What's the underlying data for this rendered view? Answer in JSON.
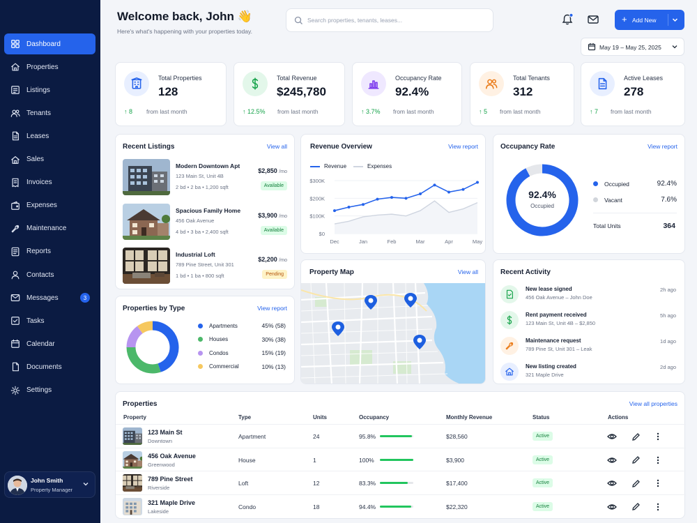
{
  "sidebar": {
    "items": [
      {
        "label": "Dashboard",
        "icon": "dashboard-icon"
      },
      {
        "label": "Properties",
        "icon": "home-icon"
      },
      {
        "label": "Listings",
        "icon": "listings-icon"
      },
      {
        "label": "Tenants",
        "icon": "users-icon"
      },
      {
        "label": "Leases",
        "icon": "document-icon"
      },
      {
        "label": "Sales",
        "icon": "house-icon"
      },
      {
        "label": "Invoices",
        "icon": "invoice-icon"
      },
      {
        "label": "Expenses",
        "icon": "wallet-icon"
      },
      {
        "label": "Maintenance",
        "icon": "wrench-icon"
      },
      {
        "label": "Reports",
        "icon": "report-icon"
      },
      {
        "label": "Contacts",
        "icon": "contact-icon"
      },
      {
        "label": "Messages",
        "icon": "mail-icon",
        "badge": "3"
      },
      {
        "label": "Tasks",
        "icon": "checkbox-icon"
      },
      {
        "label": "Calendar",
        "icon": "calendar-icon"
      },
      {
        "label": "Documents",
        "icon": "file-icon"
      },
      {
        "label": "Settings",
        "icon": "gear-icon"
      }
    ],
    "user": {
      "name": "John Smith",
      "role": "Property Manager"
    }
  },
  "header": {
    "welcome": "Welcome back, John 👋",
    "subtitle": "Here's what's happening with your properties today.",
    "search_placeholder": "Search properties, tenants, leases...",
    "add_new": "Add New",
    "date_range": "May 19 – May 25, 2025"
  },
  "stats": [
    {
      "label": "Total Properties",
      "value": "128",
      "change": "8",
      "sub": "from last month",
      "icon": "building-icon",
      "color": "#2563eb",
      "bg": "#e8efff"
    },
    {
      "label": "Total Revenue",
      "value": "$245,780",
      "change": "12.5%",
      "sub": "from last month",
      "icon": "dollar-icon",
      "color": "#16a34a",
      "bg": "#e3f7ea"
    },
    {
      "label": "Occupancy Rate",
      "value": "92.4%",
      "change": "3.7%",
      "sub": "from last month",
      "icon": "chart-icon",
      "color": "#7c3aed",
      "bg": "#efe8ff"
    },
    {
      "label": "Total Tenants",
      "value": "312",
      "change": "5",
      "sub": "from last month",
      "icon": "tenants-icon",
      "color": "#ea7a17",
      "bg": "#fff1e3"
    },
    {
      "label": "Active Leases",
      "value": "278",
      "change": "7",
      "sub": "from last month",
      "icon": "lease-icon",
      "color": "#2563eb",
      "bg": "#e8efff"
    }
  ],
  "recent_listings": {
    "title": "Recent Listings",
    "link": "View all",
    "items": [
      {
        "name": "Modern Downtown Apt",
        "address": "123 Main St, Unit 4B",
        "specs": "2 bd  •  2 ba  •  1,200 sqft",
        "price": "$2,850",
        "period": "/mo",
        "status": "Available"
      },
      {
        "name": "Spacious Family Home",
        "address": "456 Oak Avenue",
        "specs": "4 bd  •  3 ba  •  2,400 sqft",
        "price": "$3,900",
        "period": "/mo",
        "status": "Available"
      },
      {
        "name": "Industrial Loft",
        "address": "789 Pine Street, Unit 301",
        "specs": "1 bd  •  1 ba  •  800 sqft",
        "price": "$2,200",
        "period": "/mo",
        "status": "Pending"
      }
    ]
  },
  "revenue": {
    "title": "Revenue Overview",
    "link": "View report",
    "legend": [
      "Revenue",
      "Expenses"
    ],
    "yticks": [
      "$300K",
      "$200K",
      "$100K",
      "$0"
    ],
    "xticks": [
      "Dec",
      "Jan",
      "Feb",
      "Mar",
      "Apr",
      "May"
    ]
  },
  "chart_data": [
    {
      "type": "line",
      "x": [
        "Dec",
        "",
        "Jan",
        "",
        "Feb",
        "",
        "Mar",
        "",
        "Apr",
        "",
        "May"
      ],
      "series": [
        {
          "name": "Revenue",
          "values": [
            130,
            150,
            165,
            195,
            205,
            200,
            225,
            275,
            235,
            250,
            290
          ],
          "color": "#2563eb"
        },
        {
          "name": "Expenses",
          "values": [
            55,
            70,
            95,
            105,
            110,
            100,
            130,
            185,
            120,
            140,
            175
          ],
          "color": "#cfd5e0"
        }
      ],
      "ylim": [
        0,
        300
      ]
    },
    {
      "type": "pie",
      "labels": [
        "Occupied",
        "Vacant"
      ],
      "values": [
        92.4,
        7.6
      ],
      "colors": [
        "#2563eb",
        "#e5e7eb"
      ]
    },
    {
      "type": "pie",
      "labels": [
        "Apartments",
        "Houses",
        "Condos",
        "Commercial"
      ],
      "values": [
        45,
        30,
        15,
        10
      ],
      "colors": [
        "#2563eb",
        "#4cb86a",
        "#b794f0",
        "#f6c85f"
      ]
    }
  ],
  "occupancy": {
    "title": "Occupancy Rate",
    "link": "View report",
    "center_value": "92.4%",
    "center_label": "Occupied",
    "rows": [
      {
        "label": "Occupied",
        "value": "92.4%",
        "color": "#2563eb"
      },
      {
        "label": "Vacant",
        "value": "7.6%",
        "color": "#d1d5db"
      }
    ],
    "total_label": "Total Units",
    "total_value": "364"
  },
  "by_type": {
    "title": "Properties by Type",
    "link": "View report",
    "rows": [
      {
        "label": "Apartments",
        "value": "45% (58)",
        "color": "#2563eb"
      },
      {
        "label": "Houses",
        "value": "30% (38)",
        "color": "#4cb86a"
      },
      {
        "label": "Condos",
        "value": "15% (19)",
        "color": "#b794f0"
      },
      {
        "label": "Commercial",
        "value": "10% (13)",
        "color": "#f6c85f"
      }
    ]
  },
  "map": {
    "title": "Property Map",
    "link": "View all"
  },
  "activity": {
    "title": "Recent Activity",
    "items": [
      {
        "title": "New lease signed",
        "sub": "456 Oak Avenue – John Doe",
        "time": "2h ago",
        "icon": "lease-signed-icon",
        "color": "#16a34a",
        "bg": "#e3f7ea"
      },
      {
        "title": "Rent payment received",
        "sub": "123 Main St, Unit 4B – $2,850",
        "time": "5h ago",
        "icon": "dollar-icon",
        "color": "#16a34a",
        "bg": "#e3f7ea"
      },
      {
        "title": "Maintenance request",
        "sub": "789 Pine St, Unit 301 – Leak",
        "time": "1d ago",
        "icon": "wrench-icon",
        "color": "#ea7a17",
        "bg": "#fff1e3"
      },
      {
        "title": "New listing created",
        "sub": "321 Maple Drive",
        "time": "2d ago",
        "icon": "home-icon",
        "color": "#2563eb",
        "bg": "#e8efff"
      }
    ]
  },
  "properties_table": {
    "title": "Properties",
    "link": "View all properties",
    "columns": [
      "Property",
      "Type",
      "Units",
      "Occupancy",
      "Monthly Revenue",
      "Status",
      "Actions"
    ],
    "rows": [
      {
        "name": "123 Main St",
        "area": "Downtown",
        "type": "Apartment",
        "units": "24",
        "occupancy": "95.8%",
        "occ": 0.958,
        "revenue": "$28,560",
        "status": "Active"
      },
      {
        "name": "456 Oak Avenue",
        "area": "Greenwood",
        "type": "House",
        "units": "1",
        "occupancy": "100%",
        "occ": 1.0,
        "revenue": "$3,900",
        "status": "Active"
      },
      {
        "name": "789 Pine Street",
        "area": "Riverside",
        "type": "Loft",
        "units": "12",
        "occupancy": "83.3%",
        "occ": 0.833,
        "revenue": "$17,400",
        "status": "Active"
      },
      {
        "name": "321 Maple Drive",
        "area": "Lakeside",
        "type": "Condo",
        "units": "18",
        "occupancy": "94.4%",
        "occ": 0.944,
        "revenue": "$22,320",
        "status": "Active"
      }
    ]
  }
}
